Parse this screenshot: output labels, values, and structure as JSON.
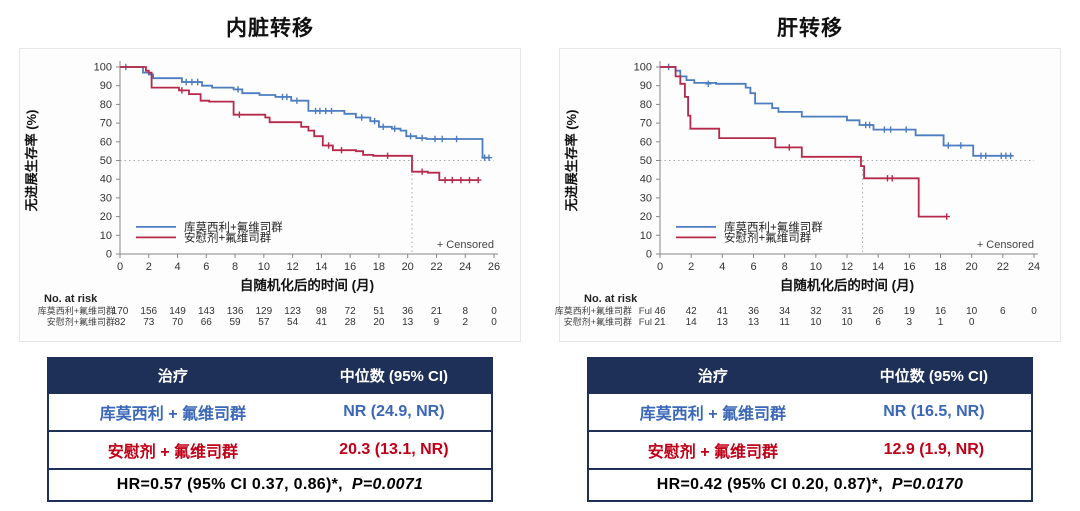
{
  "colors": {
    "treatment_line": "#4d7dc0",
    "placebo_line": "#b6294a",
    "treatment_text": "#3a67b8",
    "placebo_text": "#c00018",
    "table_header_bg": "#1e3057",
    "table_border": "#1e3057",
    "axis_text": "#333333",
    "refline": "#aaaaaa"
  },
  "labels": {
    "no_at_risk": "No. at risk",
    "censored": "+ Censored"
  },
  "chart_data": [
    {
      "type": "line",
      "subtype": "kaplan-meier-step",
      "title": "内脏转移",
      "xlabel": "自随机化后的时间 (月)",
      "ylabel": "无进展生存率 (%)",
      "xlim": [
        0,
        26
      ],
      "ylim": [
        0,
        100
      ],
      "xticks": [
        0,
        2,
        4,
        6,
        8,
        10,
        12,
        14,
        16,
        18,
        20,
        22,
        24,
        26
      ],
      "yticks": [
        0,
        10,
        20,
        30,
        40,
        50,
        60,
        70,
        80,
        90,
        100
      ],
      "grid": false,
      "legend_position": "inside-bottom-left",
      "reference_lines": {
        "h": 50,
        "v": 20.3
      },
      "series": [
        {
          "name": "库莫西利+氟维司群",
          "color": "treatment",
          "steps": [
            [
              0,
              100
            ],
            [
              1.6,
              100
            ],
            [
              1.6,
              97
            ],
            [
              2.0,
              97
            ],
            [
              2.0,
              96
            ],
            [
              2.3,
              96
            ],
            [
              2.3,
              94
            ],
            [
              4.3,
              94
            ],
            [
              4.3,
              92
            ],
            [
              5.7,
              92
            ],
            [
              5.7,
              90
            ],
            [
              6.4,
              90
            ],
            [
              6.4,
              89
            ],
            [
              7.9,
              89
            ],
            [
              7.9,
              88
            ],
            [
              8.5,
              88
            ],
            [
              8.5,
              86
            ],
            [
              9.7,
              86
            ],
            [
              9.7,
              85
            ],
            [
              10.8,
              85
            ],
            [
              10.8,
              84
            ],
            [
              11.9,
              84
            ],
            [
              11.9,
              82
            ],
            [
              13.1,
              82
            ],
            [
              13.1,
              76.5
            ],
            [
              15.6,
              76.5
            ],
            [
              15.6,
              75
            ],
            [
              16.4,
              75
            ],
            [
              16.4,
              73
            ],
            [
              17.4,
              73
            ],
            [
              17.4,
              71
            ],
            [
              18.0,
              71
            ],
            [
              18.0,
              68
            ],
            [
              18.9,
              68
            ],
            [
              18.9,
              67
            ],
            [
              19.5,
              67
            ],
            [
              19.5,
              66
            ],
            [
              19.9,
              66
            ],
            [
              19.9,
              63
            ],
            [
              20.6,
              63
            ],
            [
              20.6,
              62
            ],
            [
              21.3,
              62
            ],
            [
              21.3,
              61.5
            ],
            [
              25.2,
              61.5
            ],
            [
              25.2,
              51.5
            ],
            [
              25.7,
              51.5
            ]
          ],
          "censor_marks": [
            [
              0.4,
              100
            ],
            [
              4.6,
              92
            ],
            [
              5.0,
              92
            ],
            [
              5.4,
              92
            ],
            [
              8.2,
              88
            ],
            [
              11.3,
              84
            ],
            [
              11.6,
              84
            ],
            [
              12.3,
              82
            ],
            [
              13.6,
              76.5
            ],
            [
              13.9,
              76.5
            ],
            [
              14.3,
              76.5
            ],
            [
              14.7,
              76.5
            ],
            [
              16.8,
              73
            ],
            [
              17.7,
              71
            ],
            [
              18.3,
              68
            ],
            [
              19.1,
              67
            ],
            [
              20.2,
              63
            ],
            [
              21.0,
              62
            ],
            [
              21.9,
              61.5
            ],
            [
              22.4,
              61.5
            ],
            [
              23.4,
              61.5
            ],
            [
              25.35,
              51.5
            ],
            [
              25.65,
              51.5
            ]
          ]
        },
        {
          "name": "安慰剂+氟维司群",
          "color": "placebo",
          "steps": [
            [
              0,
              100
            ],
            [
              1.8,
              100
            ],
            [
              1.8,
              98
            ],
            [
              2.0,
              98
            ],
            [
              2.0,
              97
            ],
            [
              2.2,
              97
            ],
            [
              2.2,
              89
            ],
            [
              4.1,
              89
            ],
            [
              4.1,
              87.5
            ],
            [
              4.8,
              87.5
            ],
            [
              4.8,
              85.5
            ],
            [
              5.6,
              85.5
            ],
            [
              5.6,
              82
            ],
            [
              6.2,
              82
            ],
            [
              6.2,
              81.5
            ],
            [
              7.9,
              81.5
            ],
            [
              7.9,
              74.5
            ],
            [
              10.1,
              74.5
            ],
            [
              10.1,
              73
            ],
            [
              10.4,
              73
            ],
            [
              10.4,
              70.5
            ],
            [
              12.6,
              70.5
            ],
            [
              12.6,
              68
            ],
            [
              13.1,
              68
            ],
            [
              13.1,
              66
            ],
            [
              13.5,
              66
            ],
            [
              13.5,
              63
            ],
            [
              14.1,
              63
            ],
            [
              14.1,
              58
            ],
            [
              14.8,
              58
            ],
            [
              14.8,
              55.5
            ],
            [
              16.4,
              55.5
            ],
            [
              16.4,
              55
            ],
            [
              16.9,
              55
            ],
            [
              16.9,
              53
            ],
            [
              17.6,
              53
            ],
            [
              17.6,
              52.5
            ],
            [
              20.3,
              52.5
            ],
            [
              20.3,
              44
            ],
            [
              21.4,
              44
            ],
            [
              21.4,
              43.5
            ],
            [
              22.2,
              43.5
            ],
            [
              22.2,
              39.5
            ],
            [
              24.9,
              39.5
            ]
          ],
          "censor_marks": [
            [
              4.3,
              87.5
            ],
            [
              8.3,
              74.5
            ],
            [
              14.5,
              58
            ],
            [
              15.4,
              55.5
            ],
            [
              18.6,
              52.5
            ],
            [
              21.0,
              44
            ],
            [
              22.6,
              39.5
            ],
            [
              23.1,
              39.5
            ],
            [
              23.7,
              39.5
            ],
            [
              24.3,
              39.5
            ],
            [
              24.9,
              39.5
            ]
          ]
        }
      ],
      "no_at_risk": {
        "rows": [
          {
            "label": "库莫西利+氟维司群",
            "prefix": "",
            "values": [
              170,
              156,
              149,
              143,
              136,
              129,
              123,
              98,
              72,
              51,
              36,
              21,
              8,
              0
            ]
          },
          {
            "label": "安慰剂+氟维司群",
            "prefix": "",
            "values": [
              82,
              73,
              70,
              66,
              59,
              57,
              54,
              41,
              28,
              20,
              13,
              9,
              2,
              0
            ]
          }
        ]
      },
      "summary_table": {
        "header": [
          "治疗",
          "中位数 (95% CI)"
        ],
        "rows": [
          {
            "treatment": "库莫西利 + 氟维司群",
            "median": "NR (24.9, NR)",
            "color": "treatment"
          },
          {
            "treatment": "安慰剂 + 氟维司群",
            "median": "20.3 (13.1, NR)",
            "color": "placebo"
          }
        ],
        "footer_plain": "HR=0.57 (95% CI 0.37, 0.86)*,",
        "footer_italic": "P=0.0071"
      }
    },
    {
      "type": "line",
      "subtype": "kaplan-meier-step",
      "title": "肝转移",
      "xlabel": "自随机化后的时间 (月)",
      "ylabel": "无进展生存率 (%)",
      "xlim": [
        0,
        24
      ],
      "ylim": [
        0,
        100
      ],
      "xticks": [
        0,
        2,
        4,
        6,
        8,
        10,
        12,
        14,
        16,
        18,
        20,
        22,
        24
      ],
      "yticks": [
        0,
        10,
        20,
        30,
        40,
        50,
        60,
        70,
        80,
        90,
        100
      ],
      "grid": false,
      "legend_position": "inside-bottom-left",
      "reference_lines": {
        "h": 50,
        "v": 13.0
      },
      "series": [
        {
          "name": "库莫西利+氟维司群",
          "color": "treatment",
          "steps": [
            [
              0,
              100
            ],
            [
              1.0,
              100
            ],
            [
              1.0,
              98
            ],
            [
              1.3,
              98
            ],
            [
              1.3,
              95
            ],
            [
              1.7,
              95
            ],
            [
              1.7,
              93
            ],
            [
              2.2,
              93
            ],
            [
              2.2,
              91.5
            ],
            [
              3.6,
              91.5
            ],
            [
              3.6,
              91
            ],
            [
              5.5,
              91
            ],
            [
              5.5,
              89
            ],
            [
              5.8,
              89
            ],
            [
              5.8,
              86
            ],
            [
              6.1,
              86
            ],
            [
              6.1,
              80.5
            ],
            [
              7.2,
              80.5
            ],
            [
              7.2,
              78
            ],
            [
              7.6,
              78
            ],
            [
              7.6,
              76
            ],
            [
              9.1,
              76
            ],
            [
              9.1,
              73.5
            ],
            [
              12.0,
              73.5
            ],
            [
              12.0,
              71.5
            ],
            [
              12.8,
              71.5
            ],
            [
              12.8,
              69
            ],
            [
              13.7,
              69
            ],
            [
              13.7,
              66.5
            ],
            [
              16.4,
              66.5
            ],
            [
              16.4,
              63.5
            ],
            [
              18.2,
              63.5
            ],
            [
              18.2,
              58
            ],
            [
              20.1,
              58
            ],
            [
              20.1,
              52.5
            ],
            [
              22.6,
              52.5
            ]
          ],
          "censor_marks": [
            [
              0.55,
              100
            ],
            [
              3.1,
              91
            ],
            [
              13.2,
              69
            ],
            [
              13.45,
              69
            ],
            [
              14.4,
              66.5
            ],
            [
              14.8,
              66.5
            ],
            [
              15.8,
              66.5
            ],
            [
              18.5,
              58
            ],
            [
              19.3,
              58
            ],
            [
              20.6,
              52.5
            ],
            [
              20.9,
              52.5
            ],
            [
              21.9,
              52.5
            ],
            [
              22.2,
              52.5
            ],
            [
              22.5,
              52.5
            ]
          ]
        },
        {
          "name": "安慰剂+氟维司群",
          "color": "placebo",
          "steps": [
            [
              0,
              100
            ],
            [
              1.0,
              100
            ],
            [
              1.0,
              95
            ],
            [
              1.3,
              95
            ],
            [
              1.3,
              91
            ],
            [
              1.6,
              91
            ],
            [
              1.6,
              84
            ],
            [
              1.8,
              84
            ],
            [
              1.8,
              74
            ],
            [
              1.95,
              74
            ],
            [
              1.95,
              67
            ],
            [
              3.8,
              67
            ],
            [
              3.8,
              62
            ],
            [
              7.4,
              62
            ],
            [
              7.4,
              57
            ],
            [
              9.1,
              57
            ],
            [
              9.1,
              52
            ],
            [
              12.9,
              52
            ],
            [
              12.9,
              47
            ],
            [
              13.1,
              47
            ],
            [
              13.1,
              40.5
            ],
            [
              16.6,
              40.5
            ],
            [
              16.6,
              20
            ],
            [
              18.4,
              20
            ]
          ],
          "censor_marks": [
            [
              8.3,
              57
            ],
            [
              14.6,
              40.5
            ],
            [
              14.9,
              40.5
            ],
            [
              18.4,
              20
            ]
          ]
        }
      ],
      "no_at_risk": {
        "rows": [
          {
            "label": "库莫西利+氟维司群",
            "prefix": "Ful",
            "values": [
              46,
              42,
              41,
              36,
              34,
              32,
              31,
              26,
              19,
              16,
              10,
              6,
              0
            ]
          },
          {
            "label": "安慰剂+氟维司群",
            "prefix": "Ful",
            "values": [
              21,
              14,
              13,
              13,
              11,
              10,
              10,
              6,
              3,
              1,
              0
            ]
          }
        ]
      },
      "summary_table": {
        "header": [
          "治疗",
          "中位数 (95% CI)"
        ],
        "rows": [
          {
            "treatment": "库莫西利 + 氟维司群",
            "median": "NR (16.5, NR)",
            "color": "treatment"
          },
          {
            "treatment": "安慰剂 + 氟维司群",
            "median": "12.9 (1.9, NR)",
            "color": "placebo"
          }
        ],
        "footer_plain": "HR=0.42 (95% CI 0.20, 0.87)*,",
        "footer_italic": "P=0.0170"
      }
    }
  ]
}
